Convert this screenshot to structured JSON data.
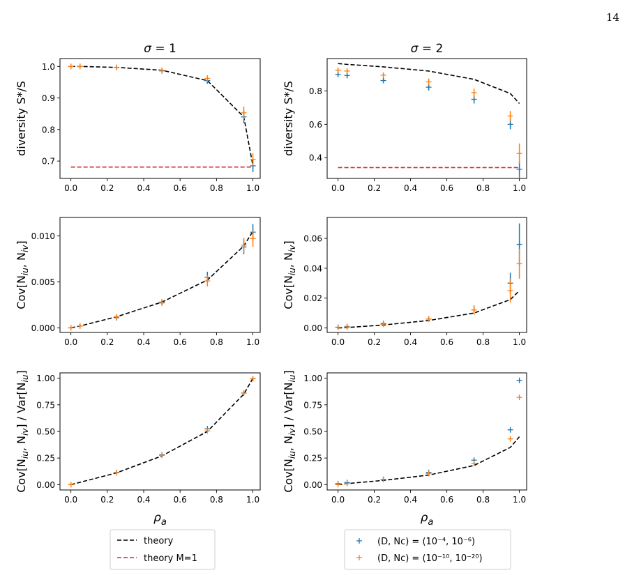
{
  "page_number": "14",
  "colors": {
    "theory": "#000000",
    "theory_m1": "#d62728",
    "series_a": "#1f77b4",
    "series_b": "#ff7f0e"
  },
  "legends": {
    "theory": [
      {
        "key": "theory_black",
        "label": "theory"
      },
      {
        "key": "theory_red",
        "label": "theory M=1"
      }
    ],
    "sim": [
      {
        "key": "sim_a",
        "label": "(D, Nc) = (10⁻⁴, 10⁻⁶)"
      },
      {
        "key": "sim_b",
        "label": "(D, Nc) = (10⁻¹⁰, 10⁻²⁰)"
      }
    ]
  },
  "chart_data": [
    {
      "id": "p11",
      "type": "scatter",
      "title": "σ = 1",
      "xlabel": "",
      "ylabel": "diversity S*/S",
      "xlim": [
        -0.06,
        1.04
      ],
      "ylim": [
        0.645,
        1.025
      ],
      "xticks": [
        "0.0",
        "0.2",
        "0.4",
        "0.6",
        "0.8",
        "1.0"
      ],
      "yticks": [
        "0.7",
        "0.8",
        "0.9",
        "1.0"
      ],
      "theory": {
        "x": [
          0,
          0.05,
          0.25,
          0.5,
          0.75,
          0.95,
          1.0
        ],
        "y": [
          1.0,
          1.0,
          0.997,
          0.988,
          0.955,
          0.84,
          0.685
        ]
      },
      "theory_m1": {
        "x": [
          0,
          1.0
        ],
        "y": [
          0.681,
          0.681
        ]
      },
      "series": [
        {
          "x": [
            0,
            0.05,
            0.25,
            0.5,
            0.75,
            0.95,
            1.0
          ],
          "y": [
            1.0,
            1.0,
            0.997,
            0.986,
            0.955,
            0.84,
            0.685
          ],
          "err": [
            0.002,
            0.002,
            0.003,
            0.005,
            0.01,
            0.02,
            0.02
          ]
        },
        {
          "x": [
            0,
            0.05,
            0.25,
            0.5,
            0.75,
            0.95,
            1.0
          ],
          "y": [
            1.0,
            1.0,
            0.997,
            0.988,
            0.962,
            0.853,
            0.705
          ],
          "err": [
            0.002,
            0.002,
            0.003,
            0.005,
            0.01,
            0.02,
            0.02
          ]
        }
      ]
    },
    {
      "id": "p12",
      "type": "scatter",
      "title": "σ = 2",
      "xlabel": "",
      "ylabel": "diversity S*/S",
      "xlim": [
        -0.06,
        1.04
      ],
      "ylim": [
        0.275,
        0.995
      ],
      "xticks": [
        "0.0",
        "0.2",
        "0.4",
        "0.6",
        "0.8",
        "1.0"
      ],
      "yticks": [
        "0.4",
        "0.6",
        "0.8"
      ],
      "theory": {
        "x": [
          0,
          0.05,
          0.25,
          0.5,
          0.75,
          0.95,
          1.0
        ],
        "y": [
          0.965,
          0.96,
          0.945,
          0.92,
          0.87,
          0.785,
          0.725
        ]
      },
      "theory_m1": {
        "x": [
          0,
          1.0
        ],
        "y": [
          0.34,
          0.34
        ]
      },
      "series": [
        {
          "x": [
            0,
            0.05,
            0.25,
            0.5,
            0.75,
            0.95,
            1.0
          ],
          "y": [
            0.9,
            0.893,
            0.863,
            0.823,
            0.75,
            0.6,
            0.33
          ],
          "err": [
            0.015,
            0.015,
            0.015,
            0.02,
            0.025,
            0.03,
            0.05
          ]
        },
        {
          "x": [
            0,
            0.05,
            0.25,
            0.5,
            0.75,
            0.95,
            1.0
          ],
          "y": [
            0.925,
            0.92,
            0.895,
            0.855,
            0.79,
            0.65,
            0.425
          ],
          "err": [
            0.015,
            0.015,
            0.015,
            0.02,
            0.025,
            0.03,
            0.06
          ]
        }
      ]
    },
    {
      "id": "p21",
      "type": "scatter",
      "title": "",
      "xlabel": "",
      "ylabel": "Cov[Niu, Niv]",
      "xlim": [
        -0.06,
        1.04
      ],
      "ylim": [
        -0.0005,
        0.012
      ],
      "xticks": [
        "0.0",
        "0.2",
        "0.4",
        "0.6",
        "0.8",
        "1.0"
      ],
      "yticks": [
        "0.000",
        "0.005",
        "0.010"
      ],
      "theory": {
        "x": [
          0,
          0.05,
          0.25,
          0.5,
          0.75,
          0.95,
          1.0
        ],
        "y": [
          0.0,
          0.0002,
          0.0012,
          0.0028,
          0.0052,
          0.0089,
          0.0105
        ]
      },
      "series": [
        {
          "x": [
            0,
            0.05,
            0.25,
            0.5,
            0.75,
            0.95,
            1.0
          ],
          "y": [
            0.0,
            0.0002,
            0.0011,
            0.0028,
            0.0055,
            0.0088,
            0.0104
          ],
          "err": [
            0.0001,
            0.0002,
            0.0002,
            0.0003,
            0.0006,
            0.0008,
            0.0009
          ]
        },
        {
          "x": [
            0,
            0.05,
            0.25,
            0.5,
            0.75,
            0.95,
            1.0
          ],
          "y": [
            0.0,
            0.0002,
            0.0012,
            0.0027,
            0.0051,
            0.009,
            0.0097
          ],
          "err": [
            0.0001,
            0.0002,
            0.0002,
            0.0003,
            0.0006,
            0.0008,
            0.0009
          ]
        }
      ]
    },
    {
      "id": "p22",
      "type": "scatter",
      "title": "",
      "xlabel": "",
      "ylabel": "Cov[Niu, Niv]",
      "xlim": [
        -0.06,
        1.04
      ],
      "ylim": [
        -0.003,
        0.074
      ],
      "xticks": [
        "0.0",
        "0.2",
        "0.4",
        "0.6",
        "0.8",
        "1.0"
      ],
      "yticks": [
        "0.00",
        "0.02",
        "0.04",
        "0.06"
      ],
      "theory": {
        "x": [
          0,
          0.05,
          0.25,
          0.5,
          0.75,
          0.95,
          1.0
        ],
        "y": [
          0.0,
          0.0003,
          0.002,
          0.005,
          0.01,
          0.019,
          0.025
        ]
      },
      "series": [
        {
          "x": [
            0,
            0.05,
            0.25,
            0.5,
            0.75,
            0.95,
            1.0
          ],
          "y": [
            0.0005,
            0.001,
            0.003,
            0.006,
            0.012,
            0.03,
            0.056
          ],
          "err": [
            0.001,
            0.001,
            0.0012,
            0.0015,
            0.003,
            0.007,
            0.014
          ]
        },
        {
          "x": [
            0,
            0.05,
            0.25,
            0.5,
            0.75,
            0.95,
            1.0
          ],
          "y": [
            0.0003,
            0.0007,
            0.0025,
            0.006,
            0.012,
            0.025,
            0.043
          ],
          "err": [
            0.001,
            0.001,
            0.0012,
            0.0015,
            0.003,
            0.008,
            0.01
          ]
        }
      ]
    },
    {
      "id": "p31",
      "type": "scatter",
      "title": "",
      "xlabel": "ρa",
      "ylabel": "Cov[Niu, Niv] / Var[Niu]",
      "xlim": [
        -0.06,
        1.04
      ],
      "ylim": [
        -0.05,
        1.05
      ],
      "xticks": [
        "0.0",
        "0.2",
        "0.4",
        "0.6",
        "0.8",
        "1.0"
      ],
      "yticks": [
        "0.00",
        "0.25",
        "0.50",
        "0.75",
        "1.00"
      ],
      "theory": {
        "x": [
          0,
          0.25,
          0.5,
          0.75,
          0.95,
          1.0
        ],
        "y": [
          0.0,
          0.11,
          0.27,
          0.5,
          0.85,
          1.0
        ]
      },
      "series": [
        {
          "x": [
            0,
            0.25,
            0.5,
            0.75,
            0.95,
            1.0
          ],
          "y": [
            0.0,
            0.115,
            0.28,
            0.525,
            0.86,
            0.995
          ],
          "err": [
            0.008,
            0.008,
            0.01,
            0.012,
            0.012,
            0.008
          ]
        },
        {
          "x": [
            0,
            0.25,
            0.5,
            0.75,
            0.95,
            1.0
          ],
          "y": [
            0.0,
            0.11,
            0.275,
            0.505,
            0.86,
            0.995
          ],
          "err": [
            0.008,
            0.008,
            0.01,
            0.012,
            0.012,
            0.008
          ]
        }
      ]
    },
    {
      "id": "p32",
      "type": "scatter",
      "title": "",
      "xlabel": "ρa",
      "ylabel": "Cov[Niu, Niv] / Var[Niu]",
      "xlim": [
        -0.06,
        1.04
      ],
      "ylim": [
        -0.05,
        1.05
      ],
      "xticks": [
        "0.0",
        "0.2",
        "0.4",
        "0.6",
        "0.8",
        "1.0"
      ],
      "yticks": [
        "0.00",
        "0.25",
        "0.50",
        "0.75",
        "1.00"
      ],
      "theory": {
        "x": [
          0,
          0.05,
          0.25,
          0.5,
          0.75,
          0.95,
          1.0
        ],
        "y": [
          0.0,
          0.01,
          0.04,
          0.09,
          0.18,
          0.35,
          0.45
        ]
      },
      "series": [
        {
          "x": [
            0,
            0.05,
            0.25,
            0.5,
            0.75,
            0.95,
            1.0
          ],
          "y": [
            0.01,
            0.02,
            0.05,
            0.115,
            0.23,
            0.515,
            0.98
          ],
          "err": [
            0.006,
            0.006,
            0.008,
            0.01,
            0.012,
            0.012,
            0.01
          ]
        },
        {
          "x": [
            0,
            0.05,
            0.25,
            0.5,
            0.75,
            0.95,
            1.0
          ],
          "y": [
            0.0,
            0.01,
            0.05,
            0.105,
            0.2,
            0.43,
            0.82
          ],
          "err": [
            0.006,
            0.006,
            0.008,
            0.01,
            0.012,
            0.012,
            0.01
          ]
        }
      ]
    }
  ]
}
